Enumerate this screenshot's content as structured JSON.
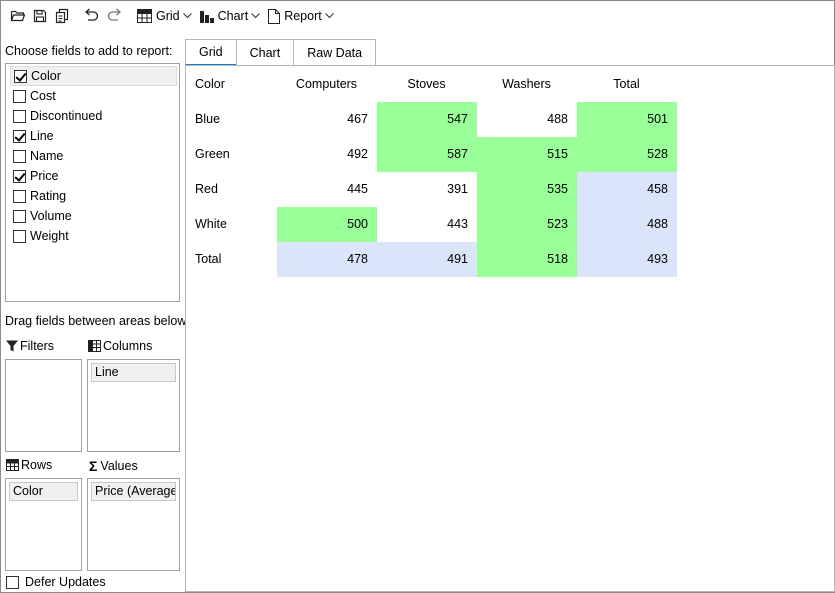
{
  "toolbar": {
    "icons": [
      "open-folder-icon",
      "save-icon",
      "copy-icon",
      "undo-icon",
      "redo-icon"
    ],
    "grid_label": "Grid",
    "chart_label": "Chart",
    "report_label": "Report"
  },
  "fields_panel": {
    "label": "Choose fields to add to report:",
    "fields": [
      {
        "name": "Color",
        "checked": true,
        "selected": true
      },
      {
        "name": "Cost",
        "checked": false
      },
      {
        "name": "Discontinued",
        "checked": false
      },
      {
        "name": "Line",
        "checked": true
      },
      {
        "name": "Name",
        "checked": false
      },
      {
        "name": "Price",
        "checked": true
      },
      {
        "name": "Rating",
        "checked": false
      },
      {
        "name": "Volume",
        "checked": false
      },
      {
        "name": "Weight",
        "checked": false
      }
    ]
  },
  "areas": {
    "label": "Drag fields between areas below:",
    "filters": {
      "title": "Filters",
      "items": []
    },
    "columns": {
      "title": "Columns",
      "items": [
        "Line"
      ]
    },
    "rows": {
      "title": "Rows",
      "items": [
        "Color"
      ]
    },
    "values": {
      "title": "Values",
      "items": [
        "Price (Average)"
      ]
    }
  },
  "defer_updates": {
    "label": "Defer Updates",
    "checked": false
  },
  "tabs": [
    {
      "label": "Grid",
      "active": true
    },
    {
      "label": "Chart",
      "active": false
    },
    {
      "label": "Raw Data",
      "active": false
    }
  ],
  "grid": {
    "row_header": "Color",
    "columns": [
      "Computers",
      "Stoves",
      "Washers",
      "Total"
    ],
    "rows": [
      {
        "label": "Blue",
        "values": [
          "467",
          "547",
          "488",
          "501"
        ],
        "shade": [
          "",
          "hi",
          "",
          "hi"
        ]
      },
      {
        "label": "Green",
        "values": [
          "492",
          "587",
          "515",
          "528"
        ],
        "shade": [
          "",
          "hi",
          "hi",
          "hi"
        ]
      },
      {
        "label": "Red",
        "values": [
          "445",
          "391",
          "535",
          "458"
        ],
        "shade": [
          "",
          "",
          "hi",
          "lo"
        ]
      },
      {
        "label": "White",
        "values": [
          "500",
          "443",
          "523",
          "488"
        ],
        "shade": [
          "hi",
          "",
          "hi",
          "lo"
        ]
      },
      {
        "label": "Total",
        "values": [
          "478",
          "491",
          "518",
          "493"
        ],
        "shade": [
          "lo",
          "lo",
          "hi",
          "lo"
        ]
      }
    ],
    "colors": {
      "high": "#99ff99",
      "low": "#dae5f9"
    }
  }
}
